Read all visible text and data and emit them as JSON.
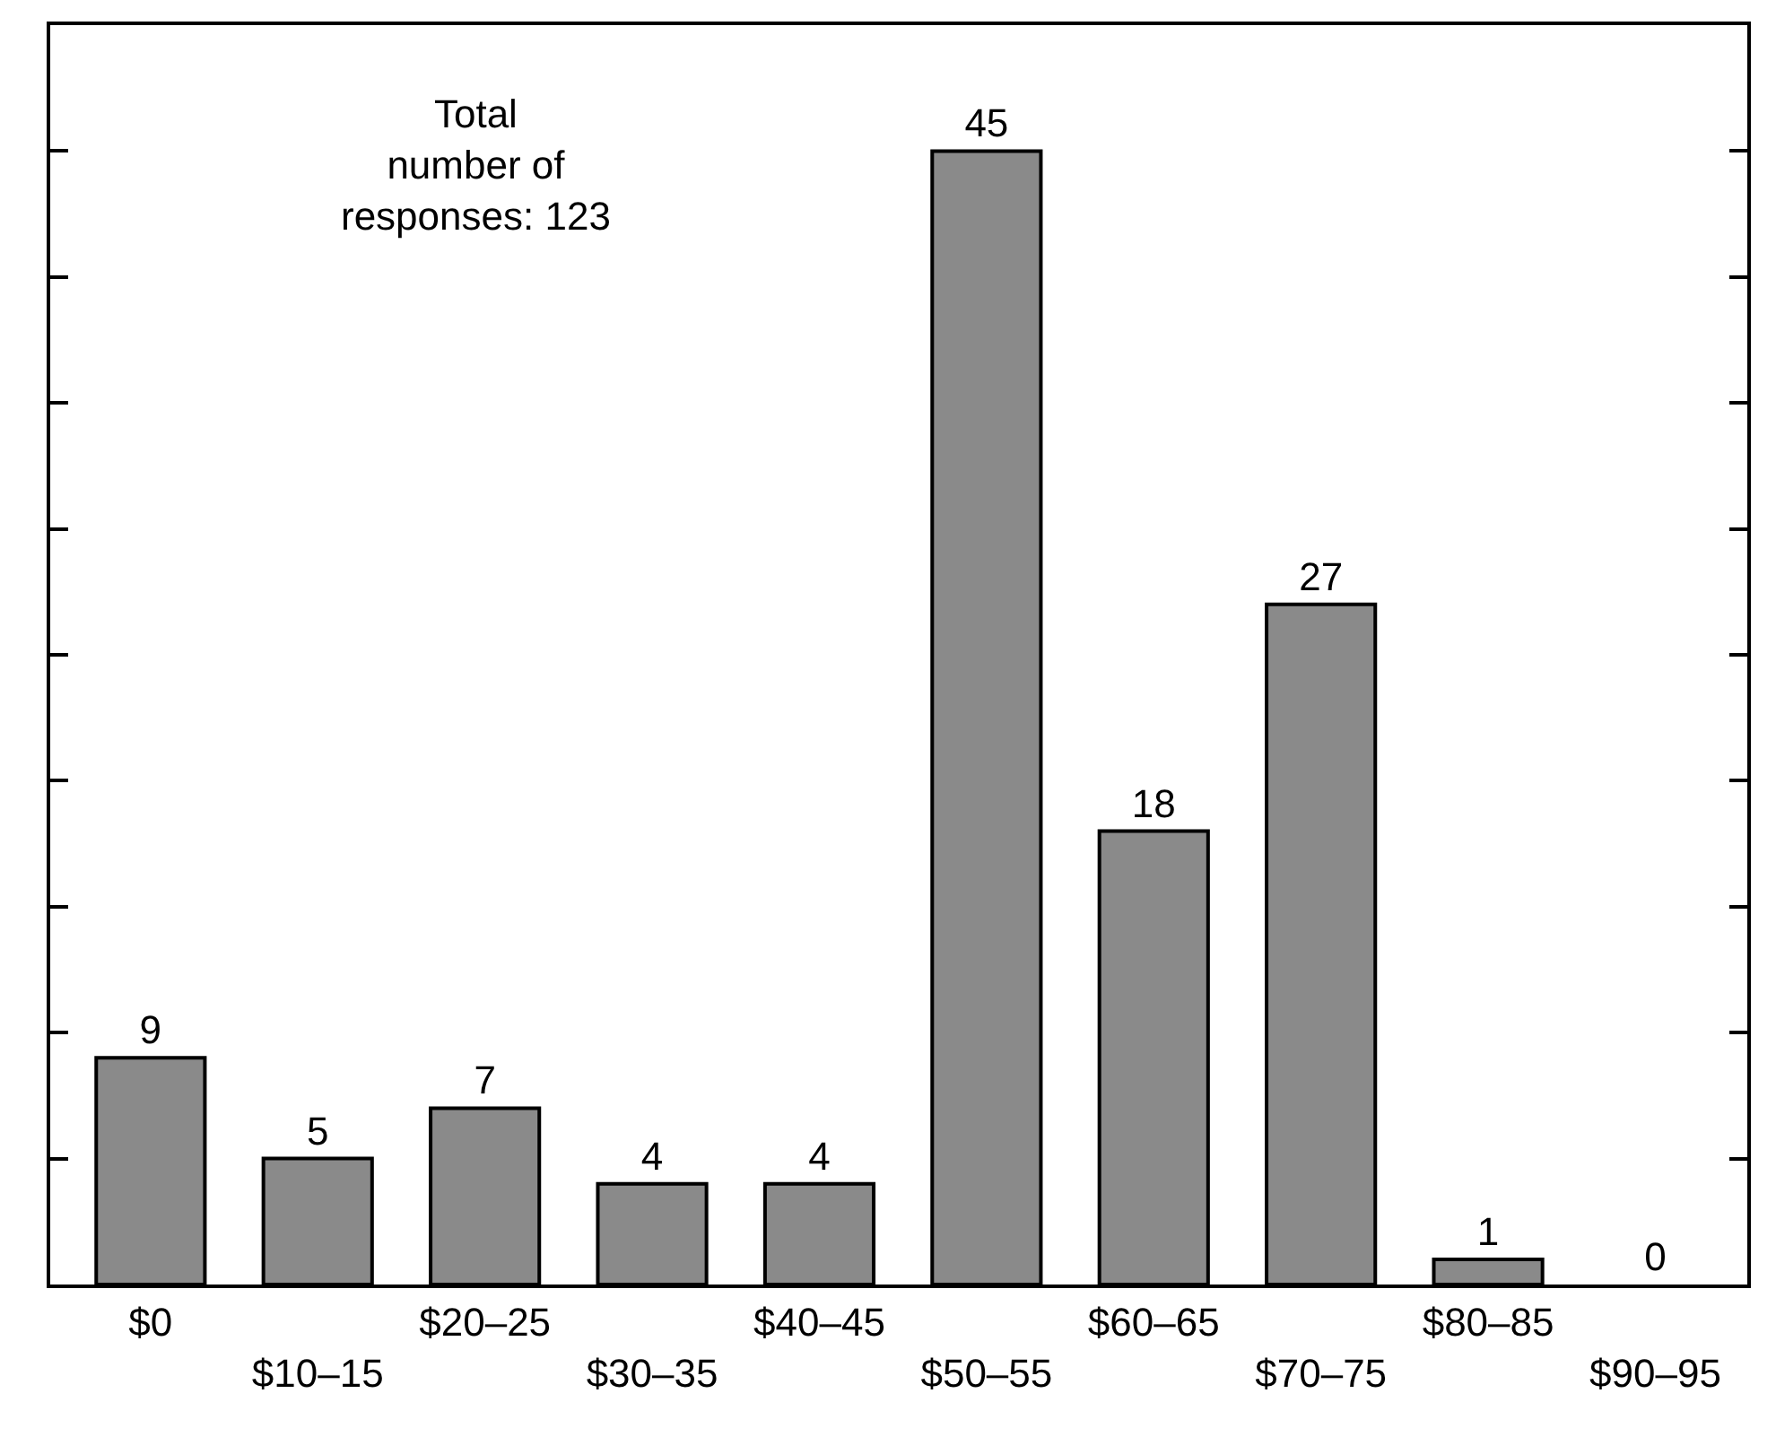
{
  "chart_data": {
    "type": "bar",
    "categories": [
      "$0",
      "$10–15",
      "$20–25",
      "$30–35",
      "$40–45",
      "$50–55",
      "$60–65",
      "$70–75",
      "$80–85",
      "$90–95"
    ],
    "values": [
      9,
      5,
      7,
      4,
      4,
      45,
      18,
      27,
      1,
      0
    ],
    "color": "#8a8a8a",
    "data_labels": true,
    "ylim": [
      0,
      50
    ],
    "yticks": [
      {
        "value": 5,
        "label": null
      },
      {
        "value": 10,
        "label": null
      },
      {
        "value": 15,
        "label": null
      },
      {
        "value": 20,
        "label": null
      },
      {
        "value": 25,
        "label": null
      },
      {
        "value": 30,
        "label": null
      },
      {
        "value": 35,
        "label": null
      },
      {
        "value": 40,
        "label": null
      },
      {
        "value": 45,
        "label": null
      }
    ],
    "tick_labels": "x",
    "legend": false,
    "annotations": [
      "Total\nnumber of\nresponses: 123"
    ]
  }
}
